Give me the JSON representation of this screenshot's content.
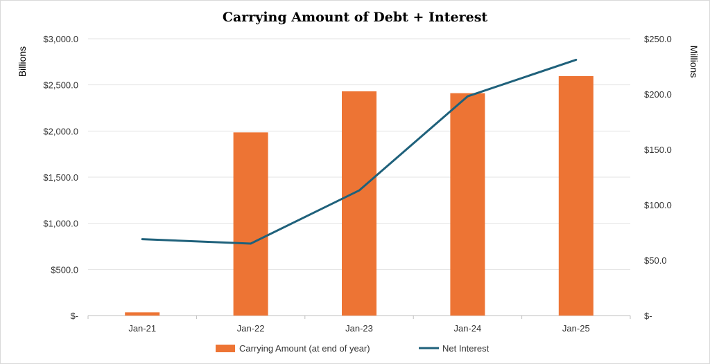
{
  "chart_data": {
    "type": "bar+line",
    "title": "Carrying Amount of Debt + Interest",
    "categories": [
      "Jan-21",
      "Jan-22",
      "Jan-23",
      "Jan-24",
      "Jan-25"
    ],
    "left_axis": {
      "label": "Billions",
      "range": [
        0,
        3000
      ],
      "ticks": [
        0,
        500,
        1000,
        1500,
        2000,
        2500,
        3000
      ],
      "tick_labels": [
        "$-",
        "$500.0",
        "$1,000.0",
        "$1,500.0",
        "$2,000.0",
        "$2,500.0",
        "$3,000.0"
      ]
    },
    "right_axis": {
      "label": "Millions",
      "range": [
        0,
        250
      ],
      "ticks": [
        0,
        50,
        100,
        150,
        200,
        250
      ],
      "tick_labels": [
        "$-",
        "$50.0",
        "$100.0",
        "$150.0",
        "$200.0",
        "$250.0"
      ]
    },
    "series": [
      {
        "name": "Carrying Amount (at end of year)",
        "type": "bar",
        "axis": "left",
        "color": "#ED7434",
        "values": [
          35,
          1985,
          2430,
          2410,
          2595
        ]
      },
      {
        "name": "Net Interest",
        "type": "line",
        "axis": "right",
        "color": "#1F617B",
        "values": [
          69,
          65,
          113,
          198,
          231
        ]
      }
    ],
    "grid": true,
    "legend_position": "bottom"
  }
}
